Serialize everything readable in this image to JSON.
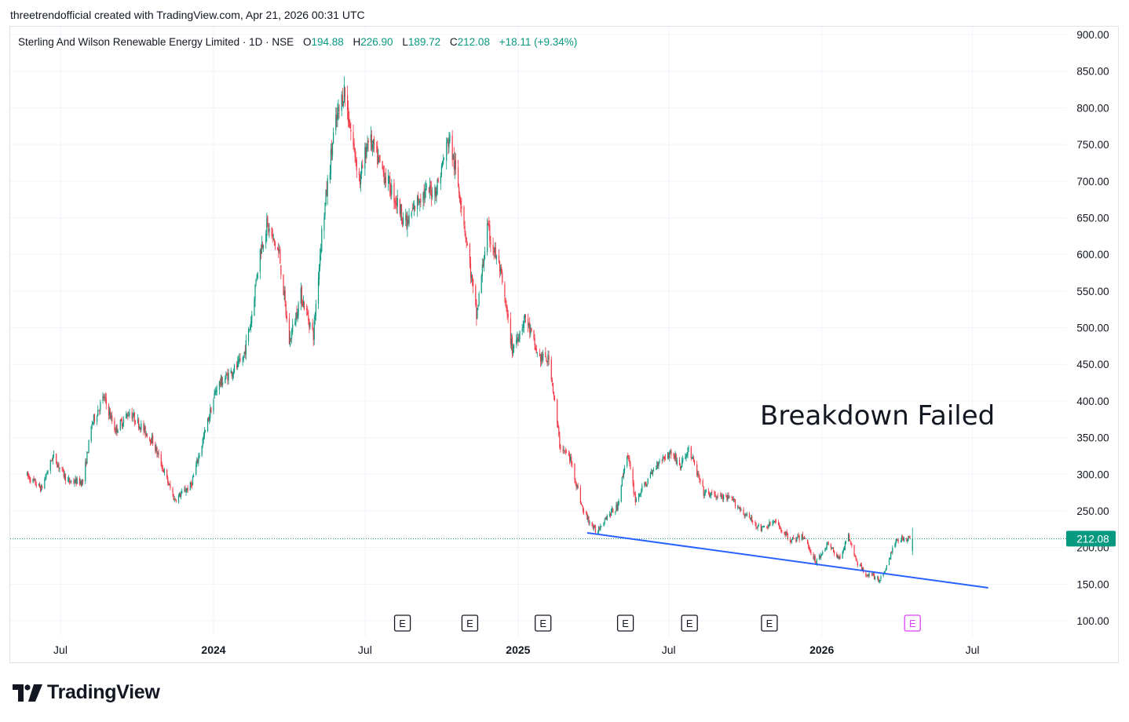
{
  "attribution": "threetrendofficial created with TradingView.com, Apr 21, 2026 00:31 UTC",
  "legend": {
    "symbol": "Sterling And Wilson Renewable Energy Limited · 1D · NSE",
    "open_label": "O",
    "open": "194.88",
    "high_label": "H",
    "high": "226.90",
    "low_label": "L",
    "low": "189.72",
    "close_label": "C",
    "close": "212.08",
    "change": "+18.11 (+9.34%)"
  },
  "annotation": "Breakdown Failed",
  "brand": "TradingView",
  "chart_data": {
    "type": "candlestick",
    "title": "Sterling And Wilson Renewable Energy Limited · 1D · NSE",
    "ylim": [
      75,
      920
    ],
    "y_ticks": [
      100,
      150,
      200,
      250,
      300,
      350,
      400,
      450,
      500,
      550,
      600,
      650,
      700,
      750,
      800,
      850,
      900
    ],
    "y_tick_labels": [
      "100.00",
      "150.00",
      "200.00",
      "250.00",
      "300.00",
      "350.00",
      "400.00",
      "450.00",
      "500.00",
      "550.00",
      "600.00",
      "650.00",
      "700.00",
      "750.00",
      "800.00",
      "850.00",
      "900.00"
    ],
    "xlim": [
      "2023-05-20",
      "2026-09-20"
    ],
    "x_ticks": [
      {
        "date": "2023-07-01",
        "label": "Jul"
      },
      {
        "date": "2024-01-01",
        "label": "2024"
      },
      {
        "date": "2024-07-01",
        "label": "Jul"
      },
      {
        "date": "2025-01-01",
        "label": "2025"
      },
      {
        "date": "2025-07-01",
        "label": "Jul"
      },
      {
        "date": "2026-01-01",
        "label": "2026"
      },
      {
        "date": "2026-07-01",
        "label": "Jul"
      }
    ],
    "price_path": [
      [
        "2023-05-20",
        300
      ],
      [
        "2023-06-08",
        280
      ],
      [
        "2023-06-22",
        325
      ],
      [
        "2023-07-10",
        290
      ],
      [
        "2023-07-28",
        290
      ],
      [
        "2023-08-08",
        370
      ],
      [
        "2023-08-22",
        405
      ],
      [
        "2023-09-05",
        360
      ],
      [
        "2023-09-22",
        385
      ],
      [
        "2023-10-20",
        345
      ],
      [
        "2023-11-15",
        265
      ],
      [
        "2023-12-05",
        285
      ],
      [
        "2023-12-20",
        350
      ],
      [
        "2024-01-05",
        420
      ],
      [
        "2024-02-05",
        455
      ],
      [
        "2024-02-15",
        510
      ],
      [
        "2024-02-25",
        600
      ],
      [
        "2024-03-05",
        640
      ],
      [
        "2024-03-20",
        600
      ],
      [
        "2024-04-01",
        480
      ],
      [
        "2024-04-15",
        545
      ],
      [
        "2024-04-30",
        490
      ],
      [
        "2024-05-10",
        630
      ],
      [
        "2024-05-25",
        770
      ],
      [
        "2024-06-06",
        825
      ],
      [
        "2024-06-15",
        760
      ],
      [
        "2024-06-25",
        700
      ],
      [
        "2024-07-05",
        760
      ],
      [
        "2024-07-20",
        720
      ],
      [
        "2024-08-05",
        680
      ],
      [
        "2024-08-20",
        640
      ],
      [
        "2024-09-05",
        680
      ],
      [
        "2024-09-25",
        690
      ],
      [
        "2024-10-10",
        760
      ],
      [
        "2024-10-25",
        670
      ],
      [
        "2024-11-12",
        515
      ],
      [
        "2024-11-25",
        635
      ],
      [
        "2024-12-10",
        580
      ],
      [
        "2024-12-25",
        470
      ],
      [
        "2025-01-10",
        515
      ],
      [
        "2025-01-25",
        460
      ],
      [
        "2025-02-08",
        455
      ],
      [
        "2025-02-20",
        340
      ],
      [
        "2025-03-05",
        320
      ],
      [
        "2025-03-20",
        250
      ],
      [
        "2025-04-05",
        220
      ],
      [
        "2025-04-15",
        240
      ],
      [
        "2025-04-30",
        255
      ],
      [
        "2025-05-12",
        330
      ],
      [
        "2025-05-22",
        265
      ],
      [
        "2025-06-05",
        290
      ],
      [
        "2025-06-20",
        320
      ],
      [
        "2025-07-05",
        330
      ],
      [
        "2025-07-15",
        310
      ],
      [
        "2025-07-25",
        335
      ],
      [
        "2025-08-12",
        275
      ],
      [
        "2025-08-28",
        270
      ],
      [
        "2025-09-15",
        265
      ],
      [
        "2025-10-01",
        245
      ],
      [
        "2025-10-20",
        225
      ],
      [
        "2025-11-05",
        235
      ],
      [
        "2025-11-25",
        210
      ],
      [
        "2025-12-10",
        215
      ],
      [
        "2025-12-25",
        180
      ],
      [
        "2026-01-08",
        205
      ],
      [
        "2026-01-22",
        185
      ],
      [
        "2026-02-02",
        215
      ],
      [
        "2026-02-12",
        180
      ],
      [
        "2026-02-22",
        165
      ],
      [
        "2026-03-05",
        160
      ],
      [
        "2026-03-12",
        155
      ],
      [
        "2026-03-20",
        175
      ],
      [
        "2026-03-28",
        200
      ],
      [
        "2026-04-01",
        212
      ]
    ],
    "last_price": 212.08,
    "last_price_label": "212.08",
    "trendline": {
      "from": [
        "2025-03-25",
        220
      ],
      "to": [
        "2026-07-20",
        145
      ],
      "color": "#2962ff"
    },
    "earnings_markers": [
      "2024-08-15",
      "2024-11-04",
      "2025-01-31",
      "2025-05-10",
      "2025-07-26",
      "2025-10-30",
      "2026-04-20"
    ],
    "earnings_label": "E",
    "colors": {
      "up": "#089981",
      "down": "#f23645",
      "trendline": "#2962ff",
      "grid": "#f0f3fa",
      "text": "#131722"
    }
  }
}
